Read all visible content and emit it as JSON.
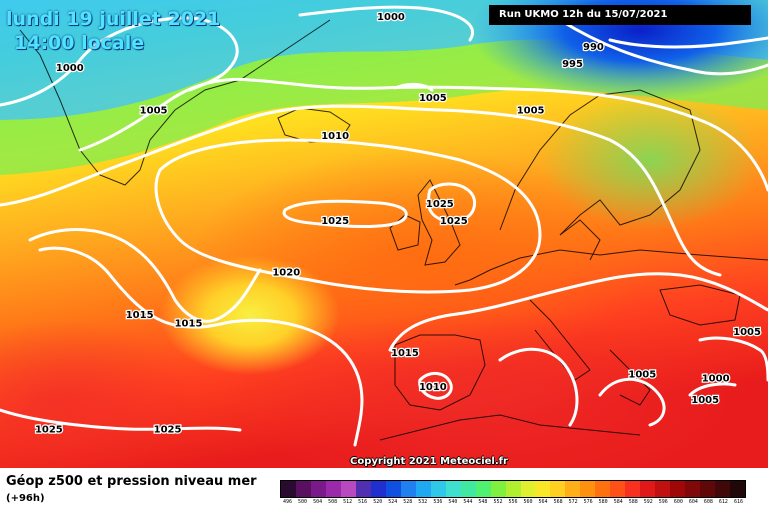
{
  "header": {
    "date_line": "lundi 19 juillet 2021",
    "time_line": "14:00 locale",
    "run_info": "Run UKMO 12h du 15/07/2021"
  },
  "footer": {
    "title": "Géop z500 et pression niveau mer",
    "subtitle": "(+96h)",
    "copyright": "Copyright 2021 Meteociel.fr"
  },
  "scale": {
    "values": [
      "496",
      "500",
      "504",
      "508",
      "512",
      "516",
      "520",
      "524",
      "528",
      "532",
      "536",
      "540",
      "544",
      "548",
      "552",
      "556",
      "560",
      "564",
      "568",
      "572",
      "576",
      "580",
      "584",
      "588",
      "592",
      "596",
      "600",
      "604",
      "608",
      "612",
      "616"
    ],
    "colors": [
      "#2a0a2e",
      "#5a1060",
      "#7a1a8a",
      "#9a2aaa",
      "#b84ac0",
      "#5030b0",
      "#2030d0",
      "#1050e0",
      "#2080f0",
      "#20a8f0",
      "#30c8e8",
      "#40e0d0",
      "#40e8a0",
      "#50f070",
      "#80f040",
      "#b0f030",
      "#e0f030",
      "#f8e828",
      "#ffd020",
      "#ffb018",
      "#ff9010",
      "#ff7010",
      "#ff5018",
      "#f83020",
      "#e01818",
      "#c01010",
      "#a00808",
      "#800808",
      "#600808",
      "#400808",
      "#200808"
    ]
  },
  "isobars": {
    "labels": [
      {
        "text": "1000",
        "lat": 72.0,
        "lon": -50.0
      },
      {
        "text": "1000",
        "lat": 78.0,
        "lon": -4.0
      },
      {
        "text": "990",
        "lat": 78.0,
        "lon": 40.0
      },
      {
        "text": "990",
        "lat": 74.5,
        "lon": 25.0
      },
      {
        "text": "995",
        "lat": 72.5,
        "lon": 22.0
      },
      {
        "text": "1005",
        "lat": 68.5,
        "lon": 2.0
      },
      {
        "text": "1005",
        "lat": 67.0,
        "lon": 16.0
      },
      {
        "text": "1005",
        "lat": 67.0,
        "lon": -38.0
      },
      {
        "text": "1010",
        "lat": 64.0,
        "lon": -12.0
      },
      {
        "text": "1025",
        "lat": 54.0,
        "lon": -12.0
      },
      {
        "text": "1025",
        "lat": 56.0,
        "lon": 3.0
      },
      {
        "text": "1025",
        "lat": 54.0,
        "lon": 5.0
      },
      {
        "text": "1020",
        "lat": 48.0,
        "lon": -19.0
      },
      {
        "text": "1015",
        "lat": 43.0,
        "lon": -40.0
      },
      {
        "text": "1015",
        "lat": 42.0,
        "lon": -33.0
      },
      {
        "text": "1015",
        "lat": 38.5,
        "lon": -2.0
      },
      {
        "text": "1010",
        "lat": 34.5,
        "lon": 2.0
      },
      {
        "text": "1005",
        "lat": 36.0,
        "lon": 32.0
      },
      {
        "text": "1005",
        "lat": 33.0,
        "lon": 41.0
      },
      {
        "text": "1005",
        "lat": 41.0,
        "lon": 47.0
      },
      {
        "text": "1000",
        "lat": 35.5,
        "lon": 42.5
      },
      {
        "text": "1025",
        "lat": 29.5,
        "lon": -53.0
      },
      {
        "text": "1025",
        "lat": 29.5,
        "lon": -36.0
      }
    ]
  }
}
